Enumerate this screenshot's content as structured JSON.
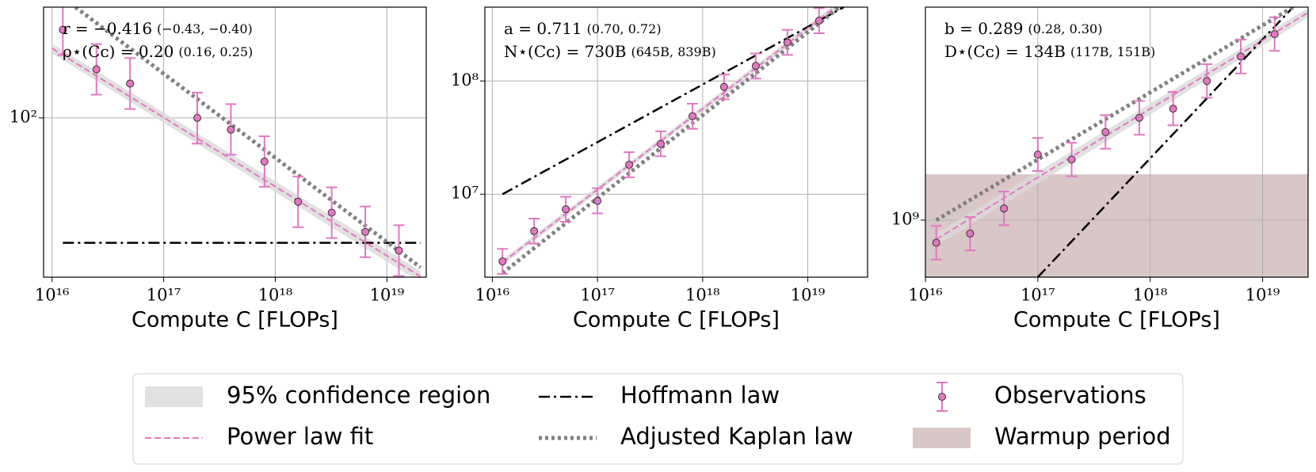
{
  "chart_data": [
    {
      "type": "scatter",
      "log": true,
      "grid": true,
      "xlabel": "Compute C [FLOPs]",
      "xlim": [
        8400000000000000.0,
        2.25e+19
      ],
      "ylim": [
        11.0,
        464
      ],
      "xticks": [
        {
          "value": 1e+16,
          "label": "10¹⁶"
        },
        {
          "value": 1e+17,
          "label": "10¹⁷"
        },
        {
          "value": 1e+18,
          "label": "10¹⁸"
        },
        {
          "value": 1e+19,
          "label": "10¹⁹"
        }
      ],
      "yticks": [
        {
          "value": 100,
          "label": "10²"
        }
      ],
      "annotations": [
        {
          "text": "r = −0.416",
          "detail": "(−0.43, −0.40)"
        },
        {
          "text": "ρ⋆(Cᴄ) = 0.20",
          "detail": "(0.16, 0.25)"
        }
      ],
      "band": {
        "color": "#d9d9d9",
        "x": [
          1e+16,
          2e+19
        ],
        "lower": [
          245,
          10.2
        ],
        "upper": [
          280,
          12.0
        ]
      },
      "fit": {
        "color": "#e377c2",
        "x": [
          1e+16,
          2e+19
        ],
        "values": [
          262,
          11.1
        ]
      },
      "hoffmann": {
        "color": "#000000",
        "x": [
          1.25e+16,
          2e+19
        ],
        "values": [
          17.7,
          17.7
        ]
      },
      "kaplan": {
        "color": "#808080",
        "x": [
          1.62e+16,
          2e+19
        ],
        "values": [
          464,
          12.6
        ]
      },
      "observations": {
        "color": "#e377c2",
        "x": [
          1.25e+16,
          2.5e+16,
          5e+16,
          2e+17,
          4e+17,
          8e+17,
          1.6e+18,
          3.2e+18,
          6.4e+18,
          1.28e+19
        ],
        "values": [
          339,
          196,
          161,
          100,
          85,
          54.6,
          31.3,
          26.9,
          20.6,
          15.9
        ],
        "error_low": [
          239,
          138,
          113,
          70,
          60,
          38.5,
          22,
          18.9,
          14.5,
          11.2
        ],
        "error_high": [
          481,
          278,
          229,
          142,
          121,
          77.5,
          44.4,
          38.2,
          29.3,
          22.6
        ]
      }
    },
    {
      "type": "scatter",
      "log": true,
      "grid": true,
      "xlabel": "Compute C [FLOPs]",
      "xlim": [
        8500000000000000.0,
        3.7e+19
      ],
      "ylim": [
        1850000.0,
        449000000.0
      ],
      "xticks": [
        {
          "value": 1e+16,
          "label": "10¹⁶"
        },
        {
          "value": 1e+17,
          "label": "10¹⁷"
        },
        {
          "value": 1e+18,
          "label": "10¹⁸"
        },
        {
          "value": 1e+19,
          "label": "10¹⁹"
        }
      ],
      "yticks": [
        {
          "value": 10000000.0,
          "label": "10⁷"
        },
        {
          "value": 100000000.0,
          "label": "10⁸"
        }
      ],
      "annotations": [
        {
          "text": "a = 0.711",
          "detail": "(0.70, 0.72)"
        },
        {
          "text": "N⋆(Cᴄ) = 730B",
          "detail": "(645B, 839B)"
        }
      ],
      "band": {
        "color": "#d9d9d9",
        "x": [
          1.25e+16,
          2e+19
        ],
        "lower": [
          2350000.0,
          450000000.0
        ],
        "upper": [
          2650000.0,
          510000000.0
        ]
      },
      "fit": {
        "color": "#e377c2",
        "x": [
          1.25e+16,
          2e+19
        ],
        "values": [
          2500000.0,
          480000000.0
        ]
      },
      "hoffmann": {
        "color": "#000000",
        "x": [
          1.25e+16,
          2.2e+19
        ],
        "values": [
          10000000.0,
          449000000.0
        ]
      },
      "kaplan": {
        "color": "#808080",
        "x": [
          1.25e+16,
          2e+19
        ],
        "values": [
          2010000.0,
          449000000.0
        ]
      },
      "observations": {
        "color": "#e377c2",
        "x": [
          1.25e+16,
          2.5e+16,
          5e+16,
          1e+17,
          2e+17,
          4e+17,
          8e+17,
          1.6e+18,
          3.2e+18,
          6.4e+18,
          1.28e+19
        ],
        "values": [
          2550000.0,
          4720000.0,
          7360000.0,
          8730000.0,
          18200000.0,
          27800000.0,
          48800000.0,
          88700000.0,
          136000000.0,
          219000000.0,
          341000000.0
        ],
        "error_low": [
          1980000.0,
          3660000.0,
          5710000.0,
          6770000.0,
          14100000.0,
          21600000.0,
          37800000.0,
          68800000.0,
          105000000.0,
          170000000.0,
          264000000.0
        ],
        "error_high": [
          3290000.0,
          6090000.0,
          9490000.0,
          11300000.0,
          23500000.0,
          35900000.0,
          63000000.0,
          114000000.0,
          175000000.0,
          283000000.0,
          440000000.0
        ]
      }
    },
    {
      "type": "scatter",
      "log": true,
      "grid": true,
      "xlabel": "Compute C [FLOPs]",
      "xlim": [
        1e+16,
        2.54e+19
      ],
      "ylim": [
        575000000.0,
        7900000000.0
      ],
      "xticks": [
        {
          "value": 1e+16,
          "label": "10¹⁶"
        },
        {
          "value": 1e+17,
          "label": "10¹⁷"
        },
        {
          "value": 1e+18,
          "label": "10¹⁸"
        },
        {
          "value": 1e+19,
          "label": "10¹⁹"
        }
      ],
      "yticks": [
        {
          "value": 1000000000.0,
          "label": "10⁹"
        }
      ],
      "annotations": [
        {
          "text": "b = 0.289",
          "detail": "(0.28, 0.30)"
        },
        {
          "text": "D⋆(Cᴄ) = 134B",
          "detail": "(117B, 151B)"
        }
      ],
      "warmup": {
        "color": "#d9c6c6",
        "ylim": [
          575000000.0,
          1560000000.0
        ]
      },
      "band": {
        "color": "#d9d9d9",
        "x": [
          1.25e+16,
          2.5e+19
        ],
        "lower": [
          780000000.0,
          7100000000.0
        ],
        "upper": [
          880000000.0,
          7800000000.0
        ]
      },
      "fit": {
        "color": "#e377c2",
        "x": [
          1.25e+16,
          2.5e+19
        ],
        "values": [
          830000000.0,
          7460000000.0
        ]
      },
      "hoffmann": {
        "color": "#000000",
        "x": [
          1e+17,
          1.87e+19
        ],
        "values": [
          575000000.0,
          7900000000.0
        ]
      },
      "kaplan": {
        "color": "#808080",
        "x": [
          1.25e+16,
          1.87e+19
        ],
        "values": [
          1000000000.0,
          7900000000.0
        ]
      },
      "observations": {
        "color": "#e377c2",
        "x": [
          1.25e+16,
          2.5e+16,
          5e+16,
          1e+17,
          2e+17,
          4e+17,
          8e+17,
          1.6e+18,
          3.2e+18,
          6.4e+18,
          1.28e+19
        ],
        "values": [
          803000000.0,
          878000000.0,
          1120000000.0,
          1890000000.0,
          1800000000.0,
          2350000000.0,
          2700000000.0,
          2950000000.0,
          3860000000.0,
          4890000000.0,
          6080000000.0
        ],
        "error_low": [
          682000000.0,
          746000000.0,
          952000000.0,
          1610000000.0,
          1530000000.0,
          2000000000.0,
          2290000000.0,
          2510000000.0,
          3280000000.0,
          4150000000.0,
          5170000000.0
        ],
        "error_high": [
          945000000.0,
          1030000000.0,
          1320000000.0,
          2220000000.0,
          2120000000.0,
          2770000000.0,
          3180000000.0,
          3470000000.0,
          4540000000.0,
          5760000000.0,
          7160000000.0
        ]
      }
    }
  ],
  "legend": [
    "95% confidence region",
    "Power law fit",
    "Hoffmann law",
    "Adjusted Kaplan law",
    "Observations",
    "Warmup period"
  ]
}
